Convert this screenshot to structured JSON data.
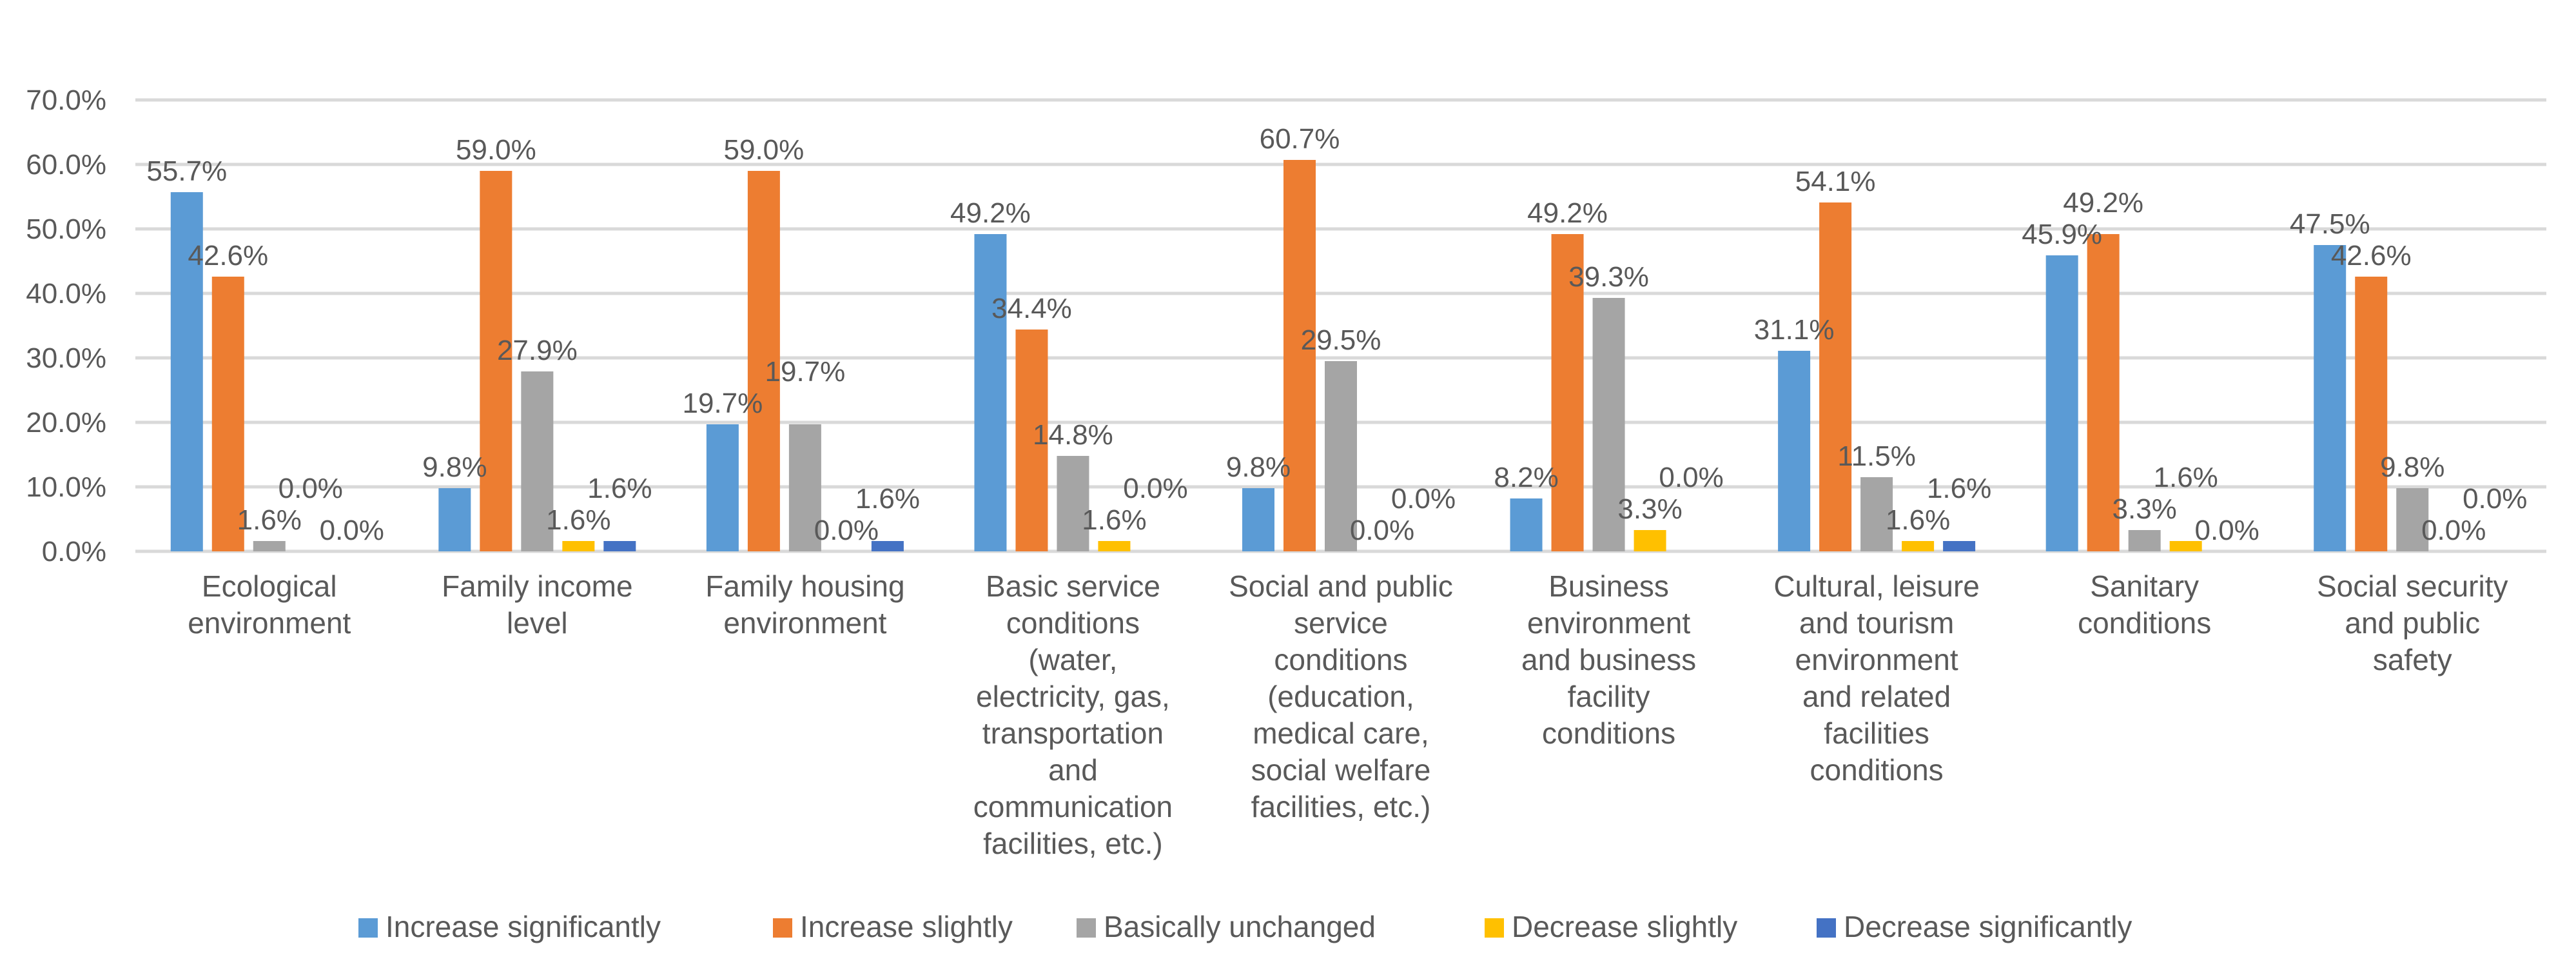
{
  "chart_data": {
    "type": "bar",
    "title": "",
    "xlabel": "",
    "ylabel": "",
    "ylim": [
      0,
      70
    ],
    "yticks": [
      "0.0%",
      "10.0%",
      "20.0%",
      "30.0%",
      "40.0%",
      "50.0%",
      "60.0%",
      "70.0%"
    ],
    "grid": true,
    "legend_position": "bottom",
    "categories": [
      [
        "Ecological",
        "environment"
      ],
      [
        "Family income",
        "level"
      ],
      [
        "Family housing",
        "environment"
      ],
      [
        "Basic service",
        "conditions",
        "(water,",
        "electricity, gas,",
        "transportation",
        "and",
        "communication",
        "facilities, etc.)"
      ],
      [
        "Social and public",
        "service",
        "conditions",
        "(education,",
        "medical care,",
        "social welfare",
        "facilities, etc.)"
      ],
      [
        "Business",
        "environment",
        "and business",
        "facility",
        "conditions"
      ],
      [
        "Cultural, leisure",
        "and tourism",
        "environment",
        "and related",
        "facilities",
        "conditions"
      ],
      [
        "Sanitary",
        "conditions"
      ],
      [
        "Social security",
        "and public",
        "safety"
      ]
    ],
    "series": [
      {
        "name": "Increase significantly",
        "color": "#5B9BD5",
        "values": [
          55.7,
          9.8,
          19.7,
          49.2,
          9.8,
          8.2,
          31.1,
          45.9,
          47.5
        ],
        "labels": [
          "55.7%",
          "9.8%",
          "19.7%",
          "49.2%",
          "9.8%",
          "8.2%",
          "31.1%",
          "45.9%",
          "47.5%"
        ]
      },
      {
        "name": "Increase slightly",
        "color": "#ED7D31",
        "values": [
          42.6,
          59.0,
          59.0,
          34.4,
          60.7,
          49.2,
          54.1,
          49.2,
          42.6
        ],
        "labels": [
          "42.6%",
          "59.0%",
          "59.0%",
          "34.4%",
          "60.7%",
          "49.2%",
          "54.1%",
          "49.2%",
          "42.6%"
        ]
      },
      {
        "name": "Basically unchanged",
        "color": "#A5A5A5",
        "values": [
          1.6,
          27.9,
          19.7,
          14.8,
          29.5,
          39.3,
          11.5,
          3.3,
          9.8
        ],
        "labels": [
          "1.6%",
          "27.9%",
          "19.7%",
          "14.8%",
          "29.5%",
          "39.3%",
          "11.5%",
          "3.3%",
          "9.8%"
        ]
      },
      {
        "name": "Decrease slightly",
        "color": "#FFC000",
        "values": [
          0.0,
          1.6,
          0.0,
          1.6,
          0.0,
          3.3,
          1.6,
          1.6,
          0.0
        ],
        "labels": [
          "0.0%",
          "1.6%",
          "0.0%",
          "1.6%",
          "0.0%",
          "3.3%",
          "1.6%",
          "1.6%",
          "0.0%"
        ]
      },
      {
        "name": "Decrease significantly",
        "color": "#4472C4",
        "values": [
          0.0,
          1.6,
          1.6,
          0.0,
          0.0,
          0.0,
          1.6,
          0.0,
          0.0
        ],
        "labels": [
          "0.0%",
          "1.6%",
          "1.6%",
          "0.0%",
          "0.0%",
          "0.0%",
          "1.6%",
          "0.0%",
          "0.0%"
        ]
      }
    ]
  }
}
